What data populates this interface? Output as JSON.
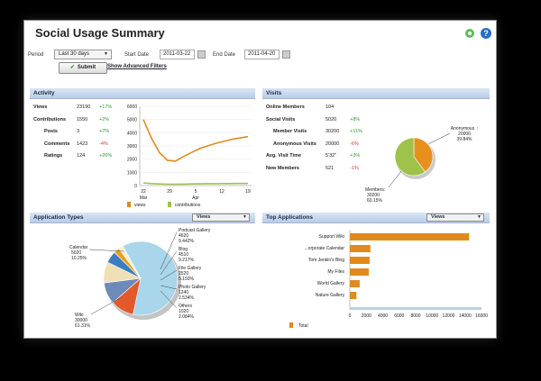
{
  "title": "Social Usage Summary",
  "filters": {
    "period_label": "Period",
    "period_value": "Last 30 days",
    "start_label": "Start Date",
    "start_value": "2011-03-22",
    "end_label": "End Date",
    "end_value": "2011-04-20",
    "submit_label": "Submit",
    "advanced_link": "Show Advanced Filters"
  },
  "help_icon": "?",
  "activity": {
    "title": "Activity",
    "rows": [
      {
        "label": "Views",
        "value": "23190",
        "change": "+17%",
        "dir": "up"
      },
      {
        "label": "Contributions",
        "value": "1550",
        "change": "+2%",
        "dir": "up"
      },
      {
        "label": "Posts",
        "value": "3",
        "change": "+7%",
        "dir": "up"
      },
      {
        "label": "Comments",
        "value": "1423",
        "change": "-4%",
        "dir": "down"
      },
      {
        "label": "Ratings",
        "value": "124",
        "change": "+26%",
        "dir": "up"
      }
    ]
  },
  "visits": {
    "title": "Visits",
    "rows": [
      {
        "label": "Online Members",
        "value": "104",
        "change": ""
      },
      {
        "label": "Social Visits",
        "value": "5020",
        "change": "+8%",
        "dir": "up"
      },
      {
        "label": "Member Visits",
        "value": "30200",
        "change": "+11%",
        "dir": "up"
      },
      {
        "label": "Anonymous Visits",
        "value": "20000",
        "change": "-6%",
        "dir": "down"
      },
      {
        "label": "Avg. Visit Time",
        "value": "5'32\"",
        "change": "+3%",
        "dir": "up"
      },
      {
        "label": "New Members",
        "value": "521",
        "change": "-1%",
        "dir": "down"
      }
    ]
  },
  "application_types": {
    "title": "Application Types",
    "select_value": "Views"
  },
  "top_applications": {
    "title": "Top Applications",
    "select_value": "Views"
  },
  "chart_data": [
    {
      "type": "line",
      "x_ticks": [
        "22",
        "29",
        "5",
        "12",
        "19"
      ],
      "x_sub": {
        "22": "Mar",
        "5": "Apr"
      },
      "ylim": [
        0,
        6000
      ],
      "y_ticks": [
        0,
        1000,
        2000,
        3000,
        4000,
        5000,
        6000
      ],
      "series": [
        {
          "name": "views",
          "color": "#e08a1e",
          "values": [
            5000,
            3600,
            2500,
            1900,
            1850,
            2200,
            2500,
            2800,
            3000,
            3200,
            3350,
            3500,
            3600,
            3700
          ]
        },
        {
          "name": "contributions",
          "color": "#9ec24a",
          "values": [
            200,
            150,
            120,
            100,
            100,
            110,
            120,
            130,
            140,
            140,
            150,
            150,
            160,
            160
          ]
        }
      ]
    },
    {
      "type": "pie",
      "slices": [
        {
          "label": "Anonymous",
          "value": 20000,
          "pct": "39.84%",
          "color": "#e8901e"
        },
        {
          "label": "Members",
          "value": 30200,
          "pct": "60.15%",
          "color": "#9ec24a"
        }
      ]
    },
    {
      "type": "pie",
      "slices": [
        {
          "label": "Wiki",
          "value": 30000,
          "pct": "61.31%",
          "color": "#a9d6ea"
        },
        {
          "label": "Calendar",
          "value": 5020,
          "pct": "10.25%",
          "color": "#e25a2a"
        },
        {
          "label": "Podcast Gallery",
          "value": 4620,
          "pct": "9.442%",
          "color": "#6e8ab8"
        },
        {
          "label": "Blog",
          "value": 4510,
          "pct": "9.217%",
          "color": "#f0e0b8"
        },
        {
          "label": "File Gallery",
          "value": 2520,
          "pct": "5.150%",
          "color": "#3a7ec0"
        },
        {
          "label": "Photo Gallery",
          "value": 1240,
          "pct": "2.534%",
          "color": "#e8a020"
        },
        {
          "label": "Others",
          "value": 1020,
          "pct": "2.084%",
          "color": "#f5f0d0"
        }
      ]
    },
    {
      "type": "bar",
      "orientation": "horizontal",
      "categories": [
        "Support Wiki",
        "...orporate Calendar",
        "Tom Jenkin's Blog",
        "My Files",
        "World Gallery",
        "Nature Gallery"
      ],
      "values": [
        14500,
        2500,
        2400,
        2300,
        1200,
        800
      ],
      "xlim": [
        0,
        16000
      ],
      "x_ticks": [
        0,
        2000,
        4000,
        6000,
        8000,
        10000,
        12000,
        14000,
        16000
      ],
      "legend": "Total",
      "color": "#e08a1e"
    }
  ]
}
